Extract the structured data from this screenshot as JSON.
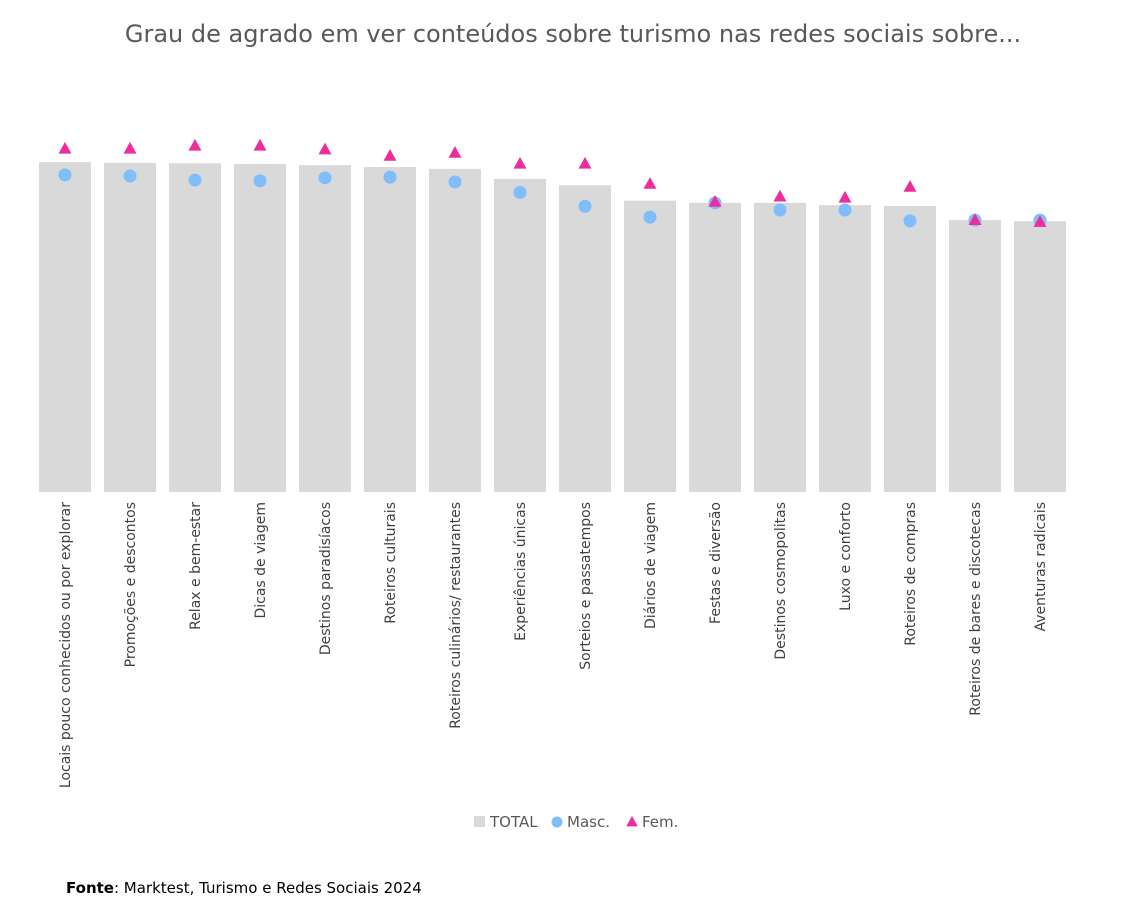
{
  "chart_data": {
    "type": "bar",
    "title": "Grau de agrado em ver conteúdos sobre turismo nas redes sociais sobre...",
    "xlabel": "",
    "ylabel": "",
    "ylim": [
      0,
      100
    ],
    "grid": false,
    "legend_position": "bottom",
    "categories": [
      "Locais pouco conhecidos ou por explorar",
      "Promoções e descontos",
      "Relax e bem-estar",
      "Dicas de viagem",
      "Destinos paradisíacos",
      "Roteiros culturais",
      "Roteiros culinários/ restaurantes",
      "Experiências únicas",
      "Sorteios e passatempos",
      "Diários de viagem",
      "Festas e diversão",
      "Destinos cosmopolitas",
      "Luxo e conforto",
      "Roteiros de compras",
      "Roteiros de bares e discotecas",
      "Aventuras radicais"
    ],
    "series": [
      {
        "name": "TOTAL",
        "kind": "bar",
        "color": "#d9d9d9",
        "values": [
          88.2,
          88.0,
          87.9,
          87.7,
          87.4,
          86.9,
          86.4,
          83.7,
          82.0,
          77.9,
          77.3,
          77.3,
          76.7,
          76.5,
          72.7,
          72.4
        ]
      },
      {
        "name": "Masc.",
        "kind": "circle",
        "color": "#7fbdfb",
        "values": [
          84.8,
          84.5,
          83.4,
          83.2,
          84.0,
          84.2,
          82.9,
          80.1,
          76.4,
          73.5,
          77.3,
          75.4,
          75.4,
          72.5,
          72.7,
          72.7
        ]
      },
      {
        "name": "Fem.",
        "kind": "triangle",
        "color": "#ed2d9b",
        "values": [
          91.8,
          91.8,
          92.6,
          92.6,
          91.6,
          89.9,
          90.7,
          87.8,
          87.8,
          82.4,
          77.6,
          79.0,
          78.7,
          81.6,
          72.7,
          72.2
        ]
      }
    ]
  },
  "source": {
    "label": "Fonte",
    "text": ": Marktest, Turismo e Redes Sociais 2024"
  }
}
